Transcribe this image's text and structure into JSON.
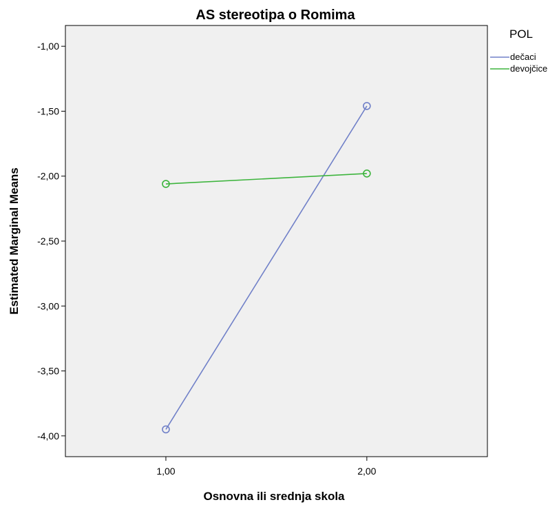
{
  "chart_data": {
    "type": "line",
    "title": "AS stereotipa o Romima",
    "xlabel": "Osnovna ili srednja skola",
    "ylabel": "Estimated Marginal Means",
    "x": [
      1.0,
      2.0
    ],
    "x_tick_labels": [
      "1,00",
      "2,00"
    ],
    "xlim": [
      0.5,
      2.6
    ],
    "ylim": [
      -4.16,
      -0.84
    ],
    "y_ticks": [
      -1.0,
      -1.5,
      -2.0,
      -2.5,
      -3.0,
      -3.5,
      -4.0
    ],
    "y_tick_labels": [
      "-1,00",
      "-1,50",
      "-2,00",
      "-2,50",
      "-3,00",
      "-3,50",
      "-4,00"
    ],
    "legend_title": "POL",
    "legend_position": "right-top",
    "grid": false,
    "plot_background": "#f0f0f0",
    "series": [
      {
        "name": "dečaci",
        "color": "#7080c8",
        "values": [
          -3.95,
          -1.46
        ],
        "marker": "open-circle"
      },
      {
        "name": "devojčice",
        "color": "#3cb43c",
        "values": [
          -2.06,
          -1.98
        ],
        "marker": "open-circle"
      }
    ]
  }
}
